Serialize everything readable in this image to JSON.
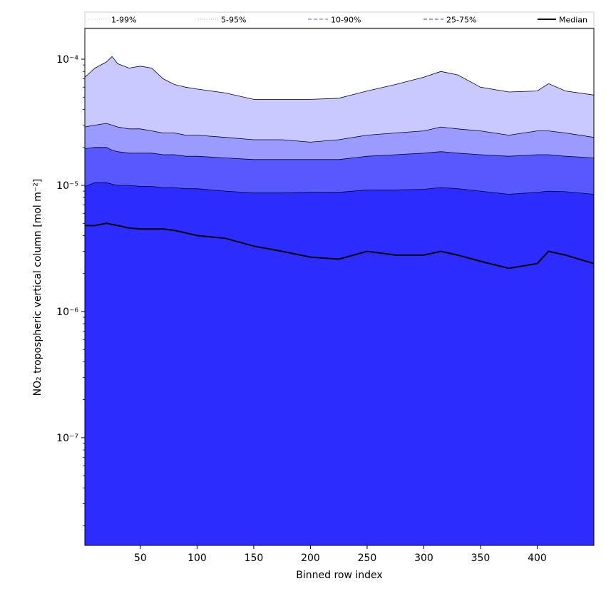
{
  "chart_data": {
    "type": "area",
    "xlabel": "Binned row index",
    "ylabel": "NO₂ tropospheric vertical column [mol m⁻²]",
    "y_scale": "log",
    "xlim": [
      1,
      450
    ],
    "ylim": [
      1.4e-08,
      0.000175
    ],
    "x_ticks": [
      50,
      100,
      150,
      200,
      250,
      300,
      350,
      400
    ],
    "x_tick_labels": [
      "50",
      "100",
      "150",
      "200",
      "250",
      "300",
      "350",
      "400"
    ],
    "y_ticks": [
      1e-07,
      1e-06,
      1e-05,
      0.0001
    ],
    "y_tick_labels": [
      "10⁻⁷",
      "10⁻⁶",
      "10⁻⁵",
      "10⁻⁴"
    ],
    "legend_placement": "top, outside plot, single row",
    "x": [
      1,
      10,
      20,
      25,
      30,
      40,
      50,
      60,
      70,
      80,
      90,
      100,
      125,
      150,
      175,
      200,
      225,
      250,
      275,
      300,
      315,
      330,
      350,
      375,
      400,
      410,
      425,
      450
    ],
    "series": [
      {
        "name": "1-99%",
        "color": "#c9c9ff",
        "style": "dotted",
        "lower": [
          3e-07,
          2e-08,
          1e-07,
          1.2e-06,
          8e-07,
          6e-07,
          5.5e-07,
          4.5e-07,
          5e-07,
          4.5e-07,
          3e-07,
          1e-07,
          1e-08,
          1e-08,
          1e-08,
          1e-08,
          1e-08,
          1e-08,
          1e-08,
          1e-08,
          1e-08,
          1e-08,
          1e-08,
          1e-08,
          1e-08,
          1e-08,
          1e-08,
          1e-08
        ],
        "upper": [
          7.2e-05,
          8.5e-05,
          9.5e-05,
          0.000105,
          9.2e-05,
          8.5e-05,
          8.8e-05,
          8.5e-05,
          7e-05,
          6.3e-05,
          6e-05,
          5.8e-05,
          5.4e-05,
          4.8e-05,
          4.8e-05,
          4.8e-05,
          4.9e-05,
          5.6e-05,
          6.3e-05,
          7.2e-05,
          8e-05,
          7.5e-05,
          6e-05,
          5.5e-05,
          5.6e-05,
          6.4e-05,
          5.6e-05,
          5.2e-05
        ]
      },
      {
        "name": "5-95%",
        "color": "#9a9aff",
        "style": "dotted",
        "lower": [
          2e-08,
          1e-08,
          1e-08,
          1e-08,
          1e-08,
          1e-08,
          1e-08,
          1e-08,
          1e-08,
          1e-08,
          1e-08,
          1e-08,
          1e-08,
          1e-08,
          1e-08,
          1e-08,
          1e-08,
          1e-08,
          1e-08,
          1e-08,
          1e-08,
          1e-08,
          1e-08,
          1e-08,
          1e-08,
          1e-08,
          1e-08,
          1e-08
        ],
        "upper": [
          2.9e-05,
          3e-05,
          3.1e-05,
          3e-05,
          2.9e-05,
          2.8e-05,
          2.8e-05,
          2.7e-05,
          2.6e-05,
          2.6e-05,
          2.5e-05,
          2.5e-05,
          2.4e-05,
          2.3e-05,
          2.3e-05,
          2.2e-05,
          2.3e-05,
          2.5e-05,
          2.6e-05,
          2.7e-05,
          2.9e-05,
          2.8e-05,
          2.7e-05,
          2.5e-05,
          2.7e-05,
          2.7e-05,
          2.6e-05,
          2.4e-05
        ]
      },
      {
        "name": "10-90%",
        "color": "#5858ff",
        "style": "dashed",
        "lower": [
          1e-08,
          1e-08,
          1e-08,
          1e-08,
          1e-08,
          1e-08,
          1e-08,
          1e-08,
          1e-08,
          1e-08,
          1e-08,
          1e-08,
          1e-08,
          1e-08,
          1e-08,
          1e-08,
          1e-08,
          1e-08,
          1e-08,
          1e-08,
          1e-08,
          1e-08,
          1e-08,
          1e-08,
          1e-08,
          1e-08,
          1e-08,
          1e-08
        ],
        "upper": [
          1.95e-05,
          2e-05,
          2e-05,
          1.9e-05,
          1.85e-05,
          1.8e-05,
          1.8e-05,
          1.8e-05,
          1.75e-05,
          1.75e-05,
          1.7e-05,
          1.7e-05,
          1.65e-05,
          1.6e-05,
          1.6e-05,
          1.6e-05,
          1.6e-05,
          1.7e-05,
          1.75e-05,
          1.8e-05,
          1.85e-05,
          1.8e-05,
          1.75e-05,
          1.7e-05,
          1.75e-05,
          1.75e-05,
          1.7e-05,
          1.65e-05
        ]
      },
      {
        "name": "25-75%",
        "color": "#2c2cff",
        "style": "dashed",
        "lower": [
          1e-08,
          1e-08,
          1e-08,
          1e-08,
          1e-08,
          1e-08,
          1e-08,
          1e-08,
          1e-08,
          1e-08,
          1e-08,
          1e-08,
          1e-08,
          1e-08,
          1e-08,
          1e-08,
          1e-08,
          1e-08,
          1e-08,
          1e-08,
          1e-08,
          1e-08,
          1e-08,
          1e-08,
          1e-08,
          1e-08,
          1e-08,
          1e-08
        ],
        "upper": [
          9.8e-06,
          1.05e-05,
          1.05e-05,
          1.02e-05,
          1e-05,
          1e-05,
          9.8e-06,
          9.8e-06,
          9.6e-06,
          9.6e-06,
          9.4e-06,
          9.4e-06,
          9e-06,
          8.7e-06,
          8.7e-06,
          8.8e-06,
          8.8e-06,
          9.2e-06,
          9.2e-06,
          9.3e-06,
          9.6e-06,
          9.4e-06,
          9e-06,
          8.5e-06,
          8.8e-06,
          9e-06,
          8.9e-06,
          8.5e-06
        ]
      },
      {
        "name": "Median",
        "color": "#000000",
        "style": "solid",
        "values": [
          4.8e-06,
          4.8e-06,
          5e-06,
          4.9e-06,
          4.8e-06,
          4.6e-06,
          4.5e-06,
          4.5e-06,
          4.5e-06,
          4.4e-06,
          4.2e-06,
          4e-06,
          3.8e-06,
          3.3e-06,
          3e-06,
          2.7e-06,
          2.6e-06,
          3e-06,
          2.8e-06,
          2.8e-06,
          3e-06,
          2.8e-06,
          2.5e-06,
          2.2e-06,
          2.4e-06,
          3e-06,
          2.8e-06,
          2.4e-06
        ]
      }
    ]
  }
}
